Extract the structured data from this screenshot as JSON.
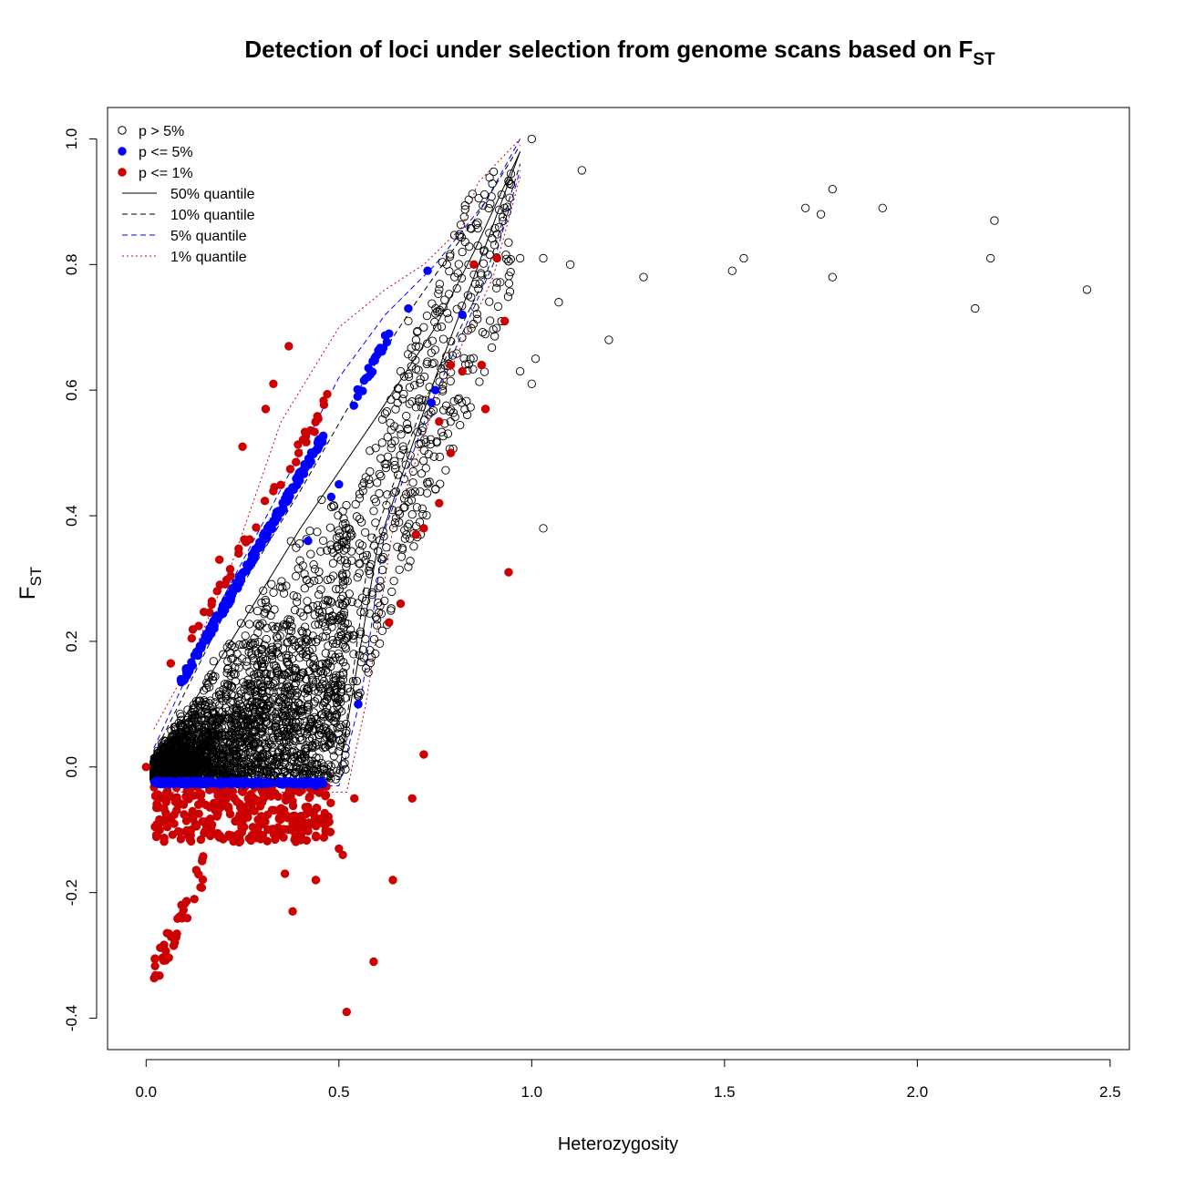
{
  "chart_data": {
    "type": "scatter",
    "title": "Detection of loci under selection from genome scans based on F",
    "title_sub": "ST",
    "xlabel": "Heterozygosity",
    "ylabel": "F",
    "ylabel_sub": "ST",
    "xlim": [
      -0.1,
      2.55
    ],
    "ylim": [
      -0.45,
      1.05
    ],
    "x_ticks": [
      "0.0",
      "0.5",
      "1.0",
      "1.5",
      "2.0",
      "2.5"
    ],
    "x_tick_values": [
      0,
      0.5,
      1.0,
      1.5,
      2.0,
      2.5
    ],
    "y_ticks": [
      "-0.4",
      "-0.2",
      "0.0",
      "0.2",
      "0.4",
      "0.6",
      "0.8",
      "1.0"
    ],
    "y_tick_values": [
      -0.4,
      -0.2,
      0,
      0.2,
      0.4,
      0.6,
      0.8,
      1.0
    ],
    "grid": false,
    "legend_position": "top-left",
    "legend": [
      {
        "label": "p > 5%",
        "kind": "point",
        "style": "open",
        "color": "#000000"
      },
      {
        "label": "p <= 5%",
        "kind": "point",
        "style": "filled",
        "color": "#0000ff"
      },
      {
        "label": "p <= 1%",
        "kind": "point",
        "style": "filled",
        "color": "#cc0000"
      },
      {
        "label": "50% quantile",
        "kind": "line",
        "dash": "solid",
        "color": "#000000"
      },
      {
        "label": "10% quantile",
        "kind": "line",
        "dash": "dashed",
        "color": "#000000"
      },
      {
        "label": "5% quantile",
        "kind": "line",
        "dash": "dashed",
        "color": "#0000ff"
      },
      {
        "label": "1% quantile",
        "kind": "line",
        "dash": "dotted",
        "color": "#cc0000"
      }
    ],
    "quantile_lines": [
      {
        "name": "50% quantile",
        "color": "#000000",
        "dash": "solid",
        "upper": [
          [
            0.02,
            0.0
          ],
          [
            0.2,
            0.18
          ],
          [
            0.4,
            0.38
          ],
          [
            0.6,
            0.56
          ],
          [
            0.75,
            0.7
          ],
          [
            0.85,
            0.82
          ],
          [
            0.97,
            0.98
          ]
        ],
        "lower": [
          [
            0.02,
            0.0
          ],
          [
            0.3,
            0.0
          ],
          [
            0.5,
            -0.01
          ],
          [
            0.6,
            0.35
          ],
          [
            0.75,
            0.62
          ],
          [
            0.85,
            0.78
          ],
          [
            0.97,
            0.98
          ]
        ]
      },
      {
        "name": "10% quantile",
        "color": "#000000",
        "dash": "dashed",
        "upper": [
          [
            0.02,
            0.02
          ],
          [
            0.2,
            0.24
          ],
          [
            0.4,
            0.44
          ],
          [
            0.55,
            0.6
          ],
          [
            0.7,
            0.74
          ],
          [
            0.85,
            0.87
          ],
          [
            0.97,
            0.99
          ]
        ],
        "lower": [
          [
            0.02,
            -0.02
          ],
          [
            0.5,
            -0.02
          ],
          [
            0.58,
            0.35
          ],
          [
            0.72,
            0.58
          ],
          [
            0.88,
            0.78
          ],
          [
            0.97,
            0.96
          ]
        ]
      },
      {
        "name": "5% quantile",
        "color": "#0000ff",
        "dash": "dashed",
        "upper": [
          [
            0.02,
            0.03
          ],
          [
            0.2,
            0.27
          ],
          [
            0.4,
            0.5
          ],
          [
            0.5,
            0.62
          ],
          [
            0.62,
            0.72
          ],
          [
            0.75,
            0.8
          ],
          [
            0.88,
            0.9
          ],
          [
            0.97,
            1.0
          ]
        ],
        "lower": [
          [
            0.02,
            -0.03
          ],
          [
            0.5,
            -0.03
          ],
          [
            0.56,
            0.12
          ],
          [
            0.62,
            0.38
          ],
          [
            0.74,
            0.58
          ],
          [
            0.9,
            0.8
          ],
          [
            0.97,
            0.95
          ]
        ]
      },
      {
        "name": "1% quantile",
        "color": "#cc0000",
        "dash": "dotted",
        "upper": [
          [
            0.02,
            0.06
          ],
          [
            0.1,
            0.15
          ],
          [
            0.22,
            0.32
          ],
          [
            0.35,
            0.55
          ],
          [
            0.5,
            0.7
          ],
          [
            0.62,
            0.76
          ],
          [
            0.72,
            0.8
          ],
          [
            0.82,
            0.86
          ],
          [
            0.86,
            0.93
          ],
          [
            0.97,
            1.0
          ]
        ],
        "lower": [
          [
            0.02,
            -0.04
          ],
          [
            0.52,
            -0.04
          ],
          [
            0.57,
            0.1
          ],
          [
            0.64,
            0.38
          ],
          [
            0.75,
            0.58
          ],
          [
            0.9,
            0.78
          ],
          [
            0.97,
            0.94
          ]
        ]
      }
    ],
    "series_outliers_open": [
      [
        1.0,
        1.0
      ],
      [
        1.13,
        0.95
      ],
      [
        1.78,
        0.92
      ],
      [
        1.71,
        0.89
      ],
      [
        1.75,
        0.88
      ],
      [
        1.91,
        0.89
      ],
      [
        2.2,
        0.87
      ],
      [
        1.55,
        0.81
      ],
      [
        1.52,
        0.79
      ],
      [
        2.19,
        0.81
      ],
      [
        1.78,
        0.78
      ],
      [
        1.29,
        0.78
      ],
      [
        2.44,
        0.76
      ],
      [
        2.15,
        0.73
      ],
      [
        1.07,
        0.74
      ],
      [
        1.2,
        0.68
      ],
      [
        1.1,
        0.8
      ],
      [
        1.03,
        0.81
      ],
      [
        0.97,
        0.81
      ],
      [
        1.01,
        0.65
      ],
      [
        1.0,
        0.61
      ],
      [
        0.97,
        0.63
      ],
      [
        1.03,
        0.38
      ],
      [
        0.93,
        0.89
      ],
      [
        0.89,
        0.85
      ],
      [
        0.86,
        0.83
      ],
      [
        0.82,
        0.82
      ],
      [
        0.8,
        0.78
      ],
      [
        0.78,
        0.8
      ],
      [
        0.76,
        0.76
      ],
      [
        0.72,
        0.7
      ],
      [
        0.7,
        0.68
      ],
      [
        0.68,
        0.71
      ],
      [
        0.66,
        0.63
      ]
    ],
    "series_sig5": [
      [
        0.73,
        0.79
      ],
      [
        0.82,
        0.72
      ],
      [
        0.68,
        0.73
      ],
      [
        0.63,
        0.69
      ],
      [
        0.75,
        0.6
      ],
      [
        0.74,
        0.58
      ],
      [
        0.5,
        0.45
      ],
      [
        0.48,
        0.43
      ],
      [
        0.42,
        0.36
      ],
      [
        0.4,
        0.47
      ],
      [
        0.55,
        0.1
      ],
      [
        0.55,
        0.1
      ],
      [
        0.44,
        -0.03
      ]
    ],
    "series_sig1": [
      [
        0.0,
        0.0
      ],
      [
        0.52,
        -0.39
      ],
      [
        0.59,
        -0.31
      ],
      [
        0.72,
        0.02
      ],
      [
        0.69,
        -0.05
      ],
      [
        0.64,
        -0.18
      ],
      [
        0.63,
        0.23
      ],
      [
        0.66,
        0.26
      ],
      [
        0.72,
        0.38
      ],
      [
        0.7,
        0.37
      ],
      [
        0.76,
        0.42
      ],
      [
        0.79,
        0.5
      ],
      [
        0.76,
        0.55
      ],
      [
        0.79,
        0.64
      ],
      [
        0.82,
        0.63
      ],
      [
        0.88,
        0.57
      ],
      [
        0.87,
        0.64
      ],
      [
        0.93,
        0.71
      ],
      [
        0.91,
        0.81
      ],
      [
        0.85,
        0.8
      ],
      [
        0.94,
        0.31
      ],
      [
        0.38,
        -0.23
      ],
      [
        0.36,
        -0.17
      ],
      [
        0.44,
        -0.18
      ],
      [
        0.5,
        -0.13
      ],
      [
        0.51,
        -0.14
      ],
      [
        0.54,
        -0.05
      ],
      [
        0.37,
        0.67
      ],
      [
        0.33,
        0.61
      ],
      [
        0.31,
        0.57
      ],
      [
        0.25,
        0.51
      ],
      [
        0.24,
        0.34
      ],
      [
        0.19,
        0.33
      ]
    ],
    "clusters": {
      "grey_triangle": {
        "x": [
          0.02,
          0.97
        ],
        "note": "dense open-circle cloud between quantile envelopes"
      }
    }
  }
}
